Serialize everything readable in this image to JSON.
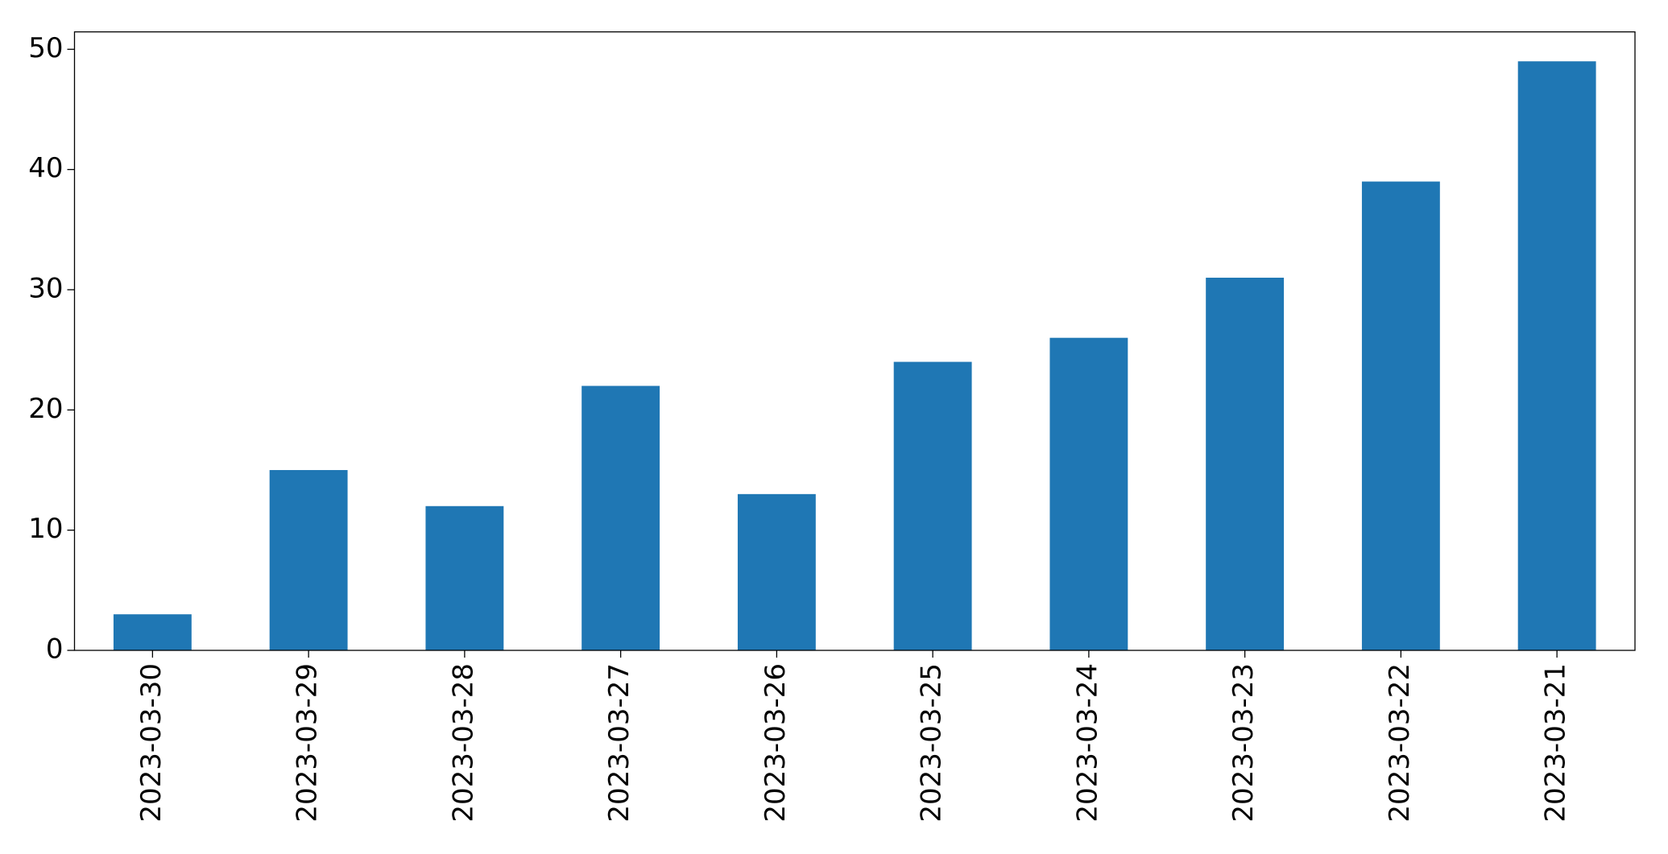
{
  "chart_data": {
    "type": "bar",
    "categories": [
      "2023-03-30",
      "2023-03-29",
      "2023-03-28",
      "2023-03-27",
      "2023-03-26",
      "2023-03-25",
      "2023-03-24",
      "2023-03-23",
      "2023-03-22",
      "2023-03-21"
    ],
    "values": [
      3,
      15,
      12,
      22,
      13,
      24,
      26,
      31,
      39,
      49
    ],
    "color": "#1f77b4",
    "ylim": [
      0,
      51.45
    ],
    "yticks": [
      0,
      10,
      20,
      30,
      40,
      50
    ],
    "grid": false
  }
}
